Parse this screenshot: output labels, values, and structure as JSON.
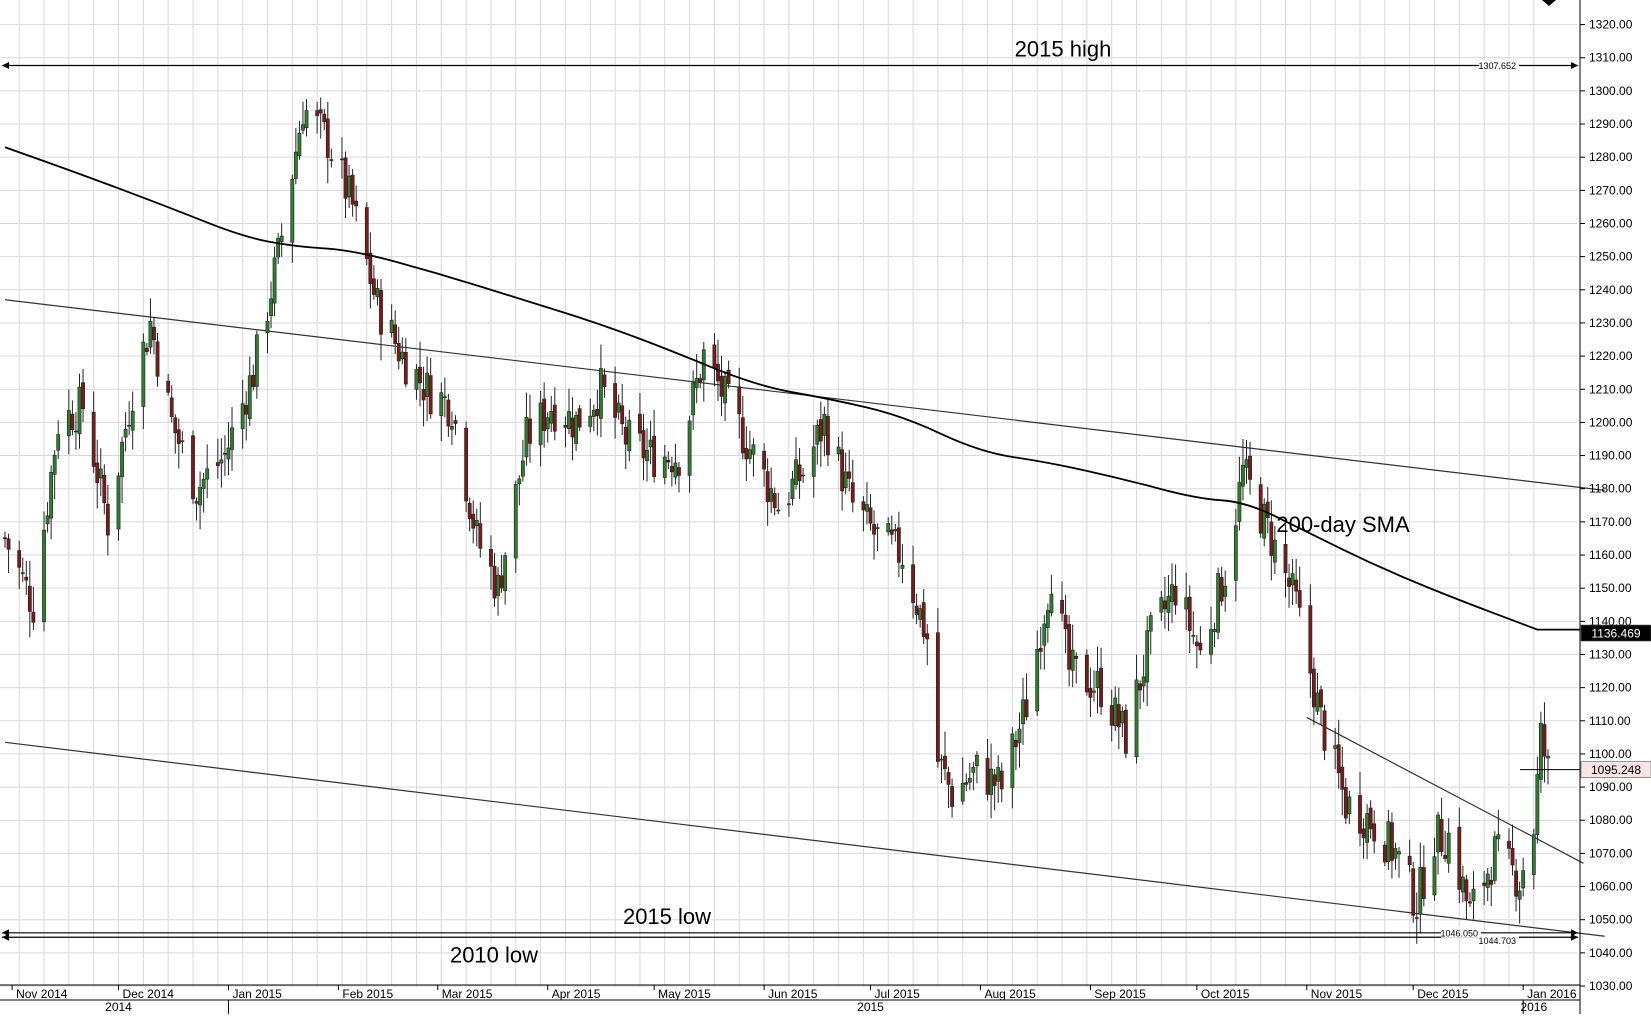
{
  "chart_data": {
    "type": "candlestick",
    "title": "",
    "xlabel": "",
    "ylabel": "",
    "ylim": [
      1030,
      1325
    ],
    "x_range": [
      "2014-10-30",
      "2016-01-08"
    ],
    "y_ticks": [
      "1030.00",
      "1040.00",
      "1050.00",
      "1060.00",
      "1070.00",
      "1080.00",
      "1090.00",
      "1100.00",
      "1110.00",
      "1120.00",
      "1130.00",
      "1140.00",
      "1150.00",
      "1160.00",
      "1170.00",
      "1180.00",
      "1190.00",
      "1200.00",
      "1210.00",
      "1220.00",
      "1230.00",
      "1240.00",
      "1250.00",
      "1260.00",
      "1270.00",
      "1280.00",
      "1290.00",
      "1300.00",
      "1310.00",
      "1320.00"
    ],
    "month_labels": [
      "Nov 2014",
      "Dec 2014",
      "Jan 2015",
      "Feb 2015",
      "Mar 2015",
      "Apr 2015",
      "May 2015",
      "Jun 2015",
      "Jul 2015",
      "Aug 2015",
      "Sep 2015",
      "Oct 2015",
      "Nov 2015",
      "Dec 2015",
      "Jan 2016"
    ],
    "month_dates": [
      "2014-11-01",
      "2014-12-01",
      "2015-01-01",
      "2015-02-01",
      "2015-03-01",
      "2015-04-01",
      "2015-05-01",
      "2015-06-01",
      "2015-07-01",
      "2015-08-01",
      "2015-09-01",
      "2015-10-01",
      "2015-11-01",
      "2015-12-01",
      "2016-01-01"
    ],
    "year_labels": [
      {
        "label": "2014",
        "date": "2014-12-01"
      },
      {
        "label": "2015",
        "date": "2015-07-01"
      },
      {
        "label": "2016",
        "date": "2016-01-04"
      }
    ],
    "year_separators": [
      "2015-01-01",
      "2016-01-01"
    ],
    "price_anchors": [
      [
        "2014-10-30",
        1165
      ],
      [
        "2014-11-07",
        1145
      ],
      [
        "2014-11-14",
        1200
      ],
      [
        "2014-11-21",
        1205
      ],
      [
        "2014-11-28",
        1170
      ],
      [
        "2014-12-05",
        1210
      ],
      [
        "2014-12-10",
        1230
      ],
      [
        "2014-12-16",
        1200
      ],
      [
        "2014-12-23",
        1180
      ],
      [
        "2014-12-31",
        1190
      ],
      [
        "2015-01-08",
        1215
      ],
      [
        "2015-01-15",
        1250
      ],
      [
        "2015-01-22",
        1295
      ],
      [
        "2015-01-29",
        1285
      ],
      [
        "2015-02-05",
        1265
      ],
      [
        "2015-02-12",
        1235
      ],
      [
        "2015-02-19",
        1220
      ],
      [
        "2015-02-26",
        1210
      ],
      [
        "2015-03-05",
        1205
      ],
      [
        "2015-03-12",
        1165
      ],
      [
        "2015-03-18",
        1150
      ],
      [
        "2015-03-26",
        1195
      ],
      [
        "2015-04-02",
        1205
      ],
      [
        "2015-04-09",
        1200
      ],
      [
        "2015-04-16",
        1210
      ],
      [
        "2015-04-23",
        1195
      ],
      [
        "2015-04-30",
        1190
      ],
      [
        "2015-05-08",
        1190
      ],
      [
        "2015-05-15",
        1220
      ],
      [
        "2015-05-22",
        1205
      ],
      [
        "2015-05-29",
        1190
      ],
      [
        "2015-06-05",
        1175
      ],
      [
        "2015-06-12",
        1185
      ],
      [
        "2015-06-18",
        1200
      ],
      [
        "2015-06-26",
        1175
      ],
      [
        "2015-07-03",
        1165
      ],
      [
        "2015-07-10",
        1160
      ],
      [
        "2015-07-17",
        1135
      ],
      [
        "2015-07-20",
        1098
      ],
      [
        "2015-07-24",
        1088
      ],
      [
        "2015-07-31",
        1095
      ],
      [
        "2015-08-07",
        1090
      ],
      [
        "2015-08-14",
        1115
      ],
      [
        "2015-08-21",
        1155
      ],
      [
        "2015-08-26",
        1125
      ],
      [
        "2015-09-04",
        1120
      ],
      [
        "2015-09-11",
        1105
      ],
      [
        "2015-09-18",
        1135
      ],
      [
        "2015-09-25",
        1150
      ],
      [
        "2015-10-02",
        1130
      ],
      [
        "2015-10-09",
        1155
      ],
      [
        "2015-10-14",
        1185
      ],
      [
        "2015-10-22",
        1165
      ],
      [
        "2015-10-29",
        1145
      ],
      [
        "2015-11-05",
        1110
      ],
      [
        "2015-11-12",
        1085
      ],
      [
        "2015-11-19",
        1080
      ],
      [
        "2015-11-26",
        1070
      ],
      [
        "2015-12-02",
        1055
      ],
      [
        "2015-12-07",
        1075
      ],
      [
        "2015-12-11",
        1075
      ],
      [
        "2015-12-17",
        1052
      ],
      [
        "2015-12-24",
        1070
      ],
      [
        "2015-12-31",
        1062
      ],
      [
        "2016-01-04",
        1078
      ],
      [
        "2016-01-06",
        1105
      ],
      [
        "2016-01-08",
        1095
      ]
    ],
    "sma_200": [
      [
        "2014-10-30",
        1283
      ],
      [
        "2014-11-20",
        1275
      ],
      [
        "2014-12-15",
        1265
      ],
      [
        "2015-01-05",
        1256
      ],
      [
        "2015-01-20",
        1253
      ],
      [
        "2015-02-05",
        1252
      ],
      [
        "2015-03-01",
        1245
      ],
      [
        "2015-03-25",
        1237
      ],
      [
        "2015-04-15",
        1230
      ],
      [
        "2015-05-05",
        1222
      ],
      [
        "2015-05-30",
        1211
      ],
      [
        "2015-06-20",
        1207
      ],
      [
        "2015-07-10",
        1202
      ],
      [
        "2015-08-01",
        1191
      ],
      [
        "2015-08-20",
        1188
      ],
      [
        "2015-09-10",
        1183
      ],
      [
        "2015-10-01",
        1177
      ],
      [
        "2015-10-15",
        1176
      ],
      [
        "2015-11-01",
        1167
      ],
      [
        "2015-11-20",
        1157
      ],
      [
        "2015-12-10",
        1148
      ],
      [
        "2016-01-05",
        1137.5
      ]
    ],
    "sma_label": "200-day SMA",
    "trendlines": [
      {
        "from": [
          "2014-10-30",
          1237
        ],
        "to": [
          "2016-01-24",
          1179.5
        ]
      },
      {
        "from": [
          "2014-10-30",
          1103.5
        ],
        "to": [
          "2016-01-24",
          1045
        ]
      },
      {
        "from": [
          "2015-11-01",
          1111
        ],
        "to": [
          "2016-01-18",
          1067
        ]
      }
    ],
    "levels": [
      {
        "value": 1307.652,
        "tag": "1307.652",
        "label": "2015 high"
      },
      {
        "value": 1046.05,
        "tag": "1046.050",
        "label": "2015 low"
      },
      {
        "value": 1044.703,
        "tag": "1044.703",
        "label": "2010 low"
      }
    ],
    "last_price": {
      "value": 1095.248,
      "tag": "1095.248",
      "color": "#f8e4e4"
    },
    "sma_current": {
      "value": 1136.469,
      "tag": "1136.469",
      "color": "#000000"
    },
    "colors": {
      "up": "#2e7d2e",
      "down": "#7a1a1a",
      "grid": "#d9d9d9",
      "text": "#000000"
    }
  }
}
